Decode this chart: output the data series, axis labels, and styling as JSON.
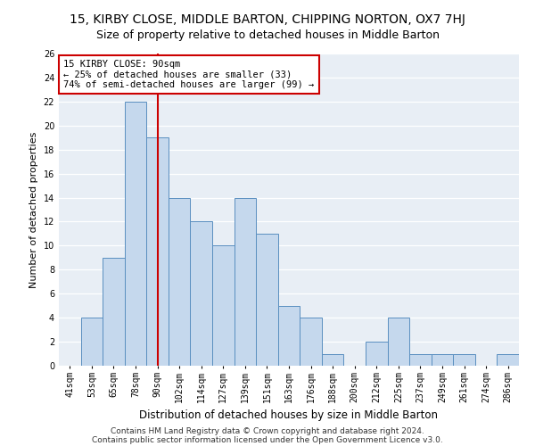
{
  "title": "15, KIRBY CLOSE, MIDDLE BARTON, CHIPPING NORTON, OX7 7HJ",
  "subtitle": "Size of property relative to detached houses in Middle Barton",
  "xlabel": "Distribution of detached houses by size in Middle Barton",
  "ylabel": "Number of detached properties",
  "categories": [
    "41sqm",
    "53sqm",
    "65sqm",
    "78sqm",
    "90sqm",
    "102sqm",
    "114sqm",
    "127sqm",
    "139sqm",
    "151sqm",
    "163sqm",
    "176sqm",
    "188sqm",
    "200sqm",
    "212sqm",
    "225sqm",
    "237sqm",
    "249sqm",
    "261sqm",
    "274sqm",
    "286sqm"
  ],
  "values": [
    0,
    4,
    9,
    22,
    19,
    14,
    12,
    10,
    14,
    11,
    5,
    4,
    1,
    0,
    2,
    4,
    1,
    1,
    1,
    0,
    1
  ],
  "bar_color": "#c5d8ed",
  "bar_edge_color": "#5a8fc0",
  "bar_edge_width": 0.7,
  "vline_x_idx": 4,
  "annotation_text": "15 KIRBY CLOSE: 90sqm\n← 25% of detached houses are smaller (33)\n74% of semi-detached houses are larger (99) →",
  "annotation_box_color": "#ffffff",
  "annotation_box_edge_color": "#cc0000",
  "vline_color": "#cc0000",
  "ylim": [
    0,
    26
  ],
  "yticks": [
    0,
    2,
    4,
    6,
    8,
    10,
    12,
    14,
    16,
    18,
    20,
    22,
    24,
    26
  ],
  "background_color": "#e8eef5",
  "grid_color": "#ffffff",
  "footer_line1": "Contains HM Land Registry data © Crown copyright and database right 2024.",
  "footer_line2": "Contains public sector information licensed under the Open Government Licence v3.0.",
  "title_fontsize": 10,
  "subtitle_fontsize": 9,
  "xlabel_fontsize": 8.5,
  "ylabel_fontsize": 8,
  "tick_fontsize": 7,
  "annotation_fontsize": 7.5,
  "footer_fontsize": 6.5
}
